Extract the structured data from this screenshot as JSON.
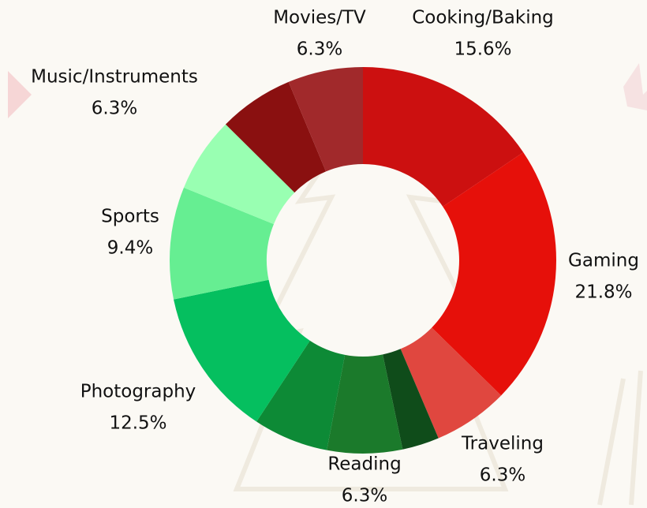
{
  "chart_data": {
    "type": "donut",
    "categories": [
      "Cooking/Baking",
      "Gaming",
      "Traveling",
      null,
      "Reading",
      null,
      "Photography",
      "Sports",
      null,
      "Music/Instruments",
      "Movies/TV"
    ],
    "values": [
      15.6,
      21.8,
      6.3,
      3.1,
      6.3,
      6.3,
      12.5,
      9.4,
      6.3,
      6.3,
      6.3
    ],
    "value_labels": [
      "15.6%",
      "21.8%",
      "6.3%",
      null,
      "6.3%",
      null,
      "12.5%",
      "9.4%",
      null,
      "6.3%",
      "6.3%"
    ],
    "colors": [
      "#cc1010",
      "#e6100a",
      "#e0473f",
      "#0f4c1a",
      "#1b7a2b",
      "#0d8a36",
      "#05bf5f",
      "#66ee92",
      "#99ffb2",
      "#8a1010",
      "#a1292b"
    ]
  }
}
